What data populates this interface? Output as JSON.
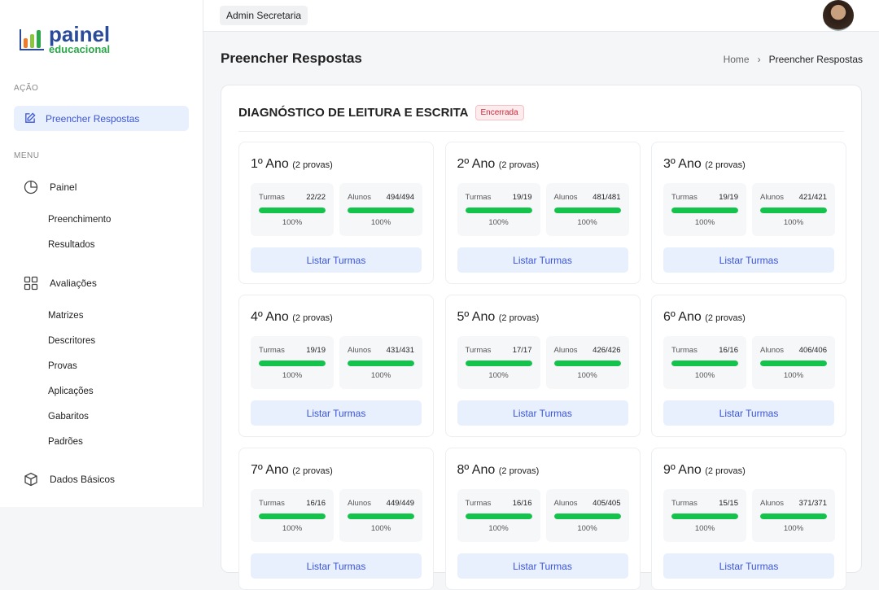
{
  "logo": {
    "line1": "painel",
    "line2": "educacional"
  },
  "sidebar": {
    "section_action": "AÇÃO",
    "active_item": "Preencher Respostas",
    "section_menu": "MENU",
    "painel": "Painel",
    "painel_sub": [
      "Preenchimento",
      "Resultados"
    ],
    "avaliacoes": "Avaliações",
    "avaliacoes_sub": [
      "Matrizes",
      "Descritores",
      "Provas",
      "Aplicações",
      "Gabaritos",
      "Padrões"
    ],
    "dados": "Dados Básicos"
  },
  "header": {
    "user": "Admin Secretaria"
  },
  "page": {
    "title": "Preencher Respostas",
    "breadcrumb": [
      "Home",
      "Preencher Respostas"
    ]
  },
  "panel": {
    "title": "DIAGNÓSTICO DE LEITURA E ESCRITA",
    "status": "Encerrada",
    "status_color": "#d0263a",
    "turmas_label": "Turmas",
    "alunos_label": "Alunos",
    "button": "Listar Turmas",
    "cards": [
      {
        "ano": "1º Ano",
        "provas": "(2 provas)",
        "turmas": "22/22",
        "turmas_pct": "100%",
        "alunos": "494/494",
        "alunos_pct": "100%"
      },
      {
        "ano": "2º Ano",
        "provas": "(2 provas)",
        "turmas": "19/19",
        "turmas_pct": "100%",
        "alunos": "481/481",
        "alunos_pct": "100%"
      },
      {
        "ano": "3º Ano",
        "provas": "(2 provas)",
        "turmas": "19/19",
        "turmas_pct": "100%",
        "alunos": "421/421",
        "alunos_pct": "100%"
      },
      {
        "ano": "4º Ano",
        "provas": "(2 provas)",
        "turmas": "19/19",
        "turmas_pct": "100%",
        "alunos": "431/431",
        "alunos_pct": "100%"
      },
      {
        "ano": "5º Ano",
        "provas": "(2 provas)",
        "turmas": "17/17",
        "turmas_pct": "100%",
        "alunos": "426/426",
        "alunos_pct": "100%"
      },
      {
        "ano": "6º Ano",
        "provas": "(2 provas)",
        "turmas": "16/16",
        "turmas_pct": "100%",
        "alunos": "406/406",
        "alunos_pct": "100%"
      },
      {
        "ano": "7º Ano",
        "provas": "(2 provas)",
        "turmas": "16/16",
        "turmas_pct": "100%",
        "alunos": "449/449",
        "alunos_pct": "100%"
      },
      {
        "ano": "8º Ano",
        "provas": "(2 provas)",
        "turmas": "16/16",
        "turmas_pct": "100%",
        "alunos": "405/405",
        "alunos_pct": "100%"
      },
      {
        "ano": "9º Ano",
        "provas": "(2 provas)",
        "turmas": "15/15",
        "turmas_pct": "100%",
        "alunos": "371/371",
        "alunos_pct": "100%"
      }
    ]
  },
  "colors": {
    "accent": "#3b55d9",
    "progress": "#14c34c"
  }
}
